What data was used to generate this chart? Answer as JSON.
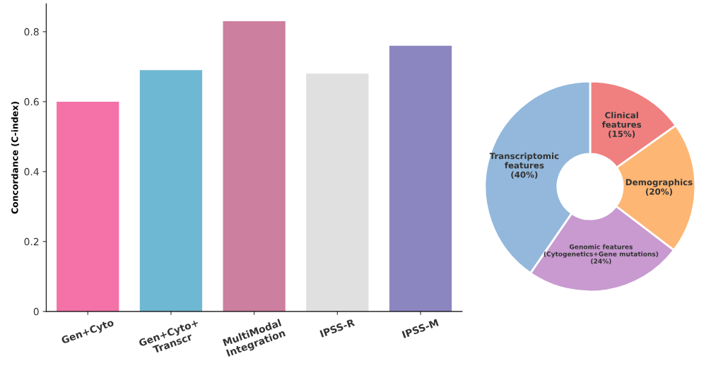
{
  "chart_data": [
    {
      "type": "bar",
      "ylabel": "Concordance (C-index)",
      "categories": [
        "Gen+Cyto",
        "Gen+Cyto+\nTranscr",
        "MultiModal\nIntegration",
        "IPSS-R",
        "IPSS-M"
      ],
      "values": [
        0.6,
        0.69,
        0.83,
        0.68,
        0.76
      ],
      "colors": [
        "#f472a8",
        "#6fb8d3",
        "#cc7f9e",
        "#e0e0e0",
        "#8c86c0"
      ],
      "ylim": [
        0,
        0.88
      ],
      "yticks": [
        0,
        0.2,
        0.4,
        0.6,
        0.8
      ],
      "grid": false,
      "legend": false
    },
    {
      "type": "donut",
      "categories": [
        "Clinical\nfeatures",
        "Demographics",
        "Genomic features\n(Cytogenetics+Gene mutations)",
        "Transcriptomic\nfeatures"
      ],
      "values": [
        15,
        20,
        24,
        40
      ],
      "value_labels": [
        "(15%)",
        "(20%)",
        "(24%)",
        "(40%)"
      ],
      "colors": [
        "#f08080",
        "#fdb673",
        "#c89ad0",
        "#93b8dc"
      ],
      "legend": false
    }
  ]
}
